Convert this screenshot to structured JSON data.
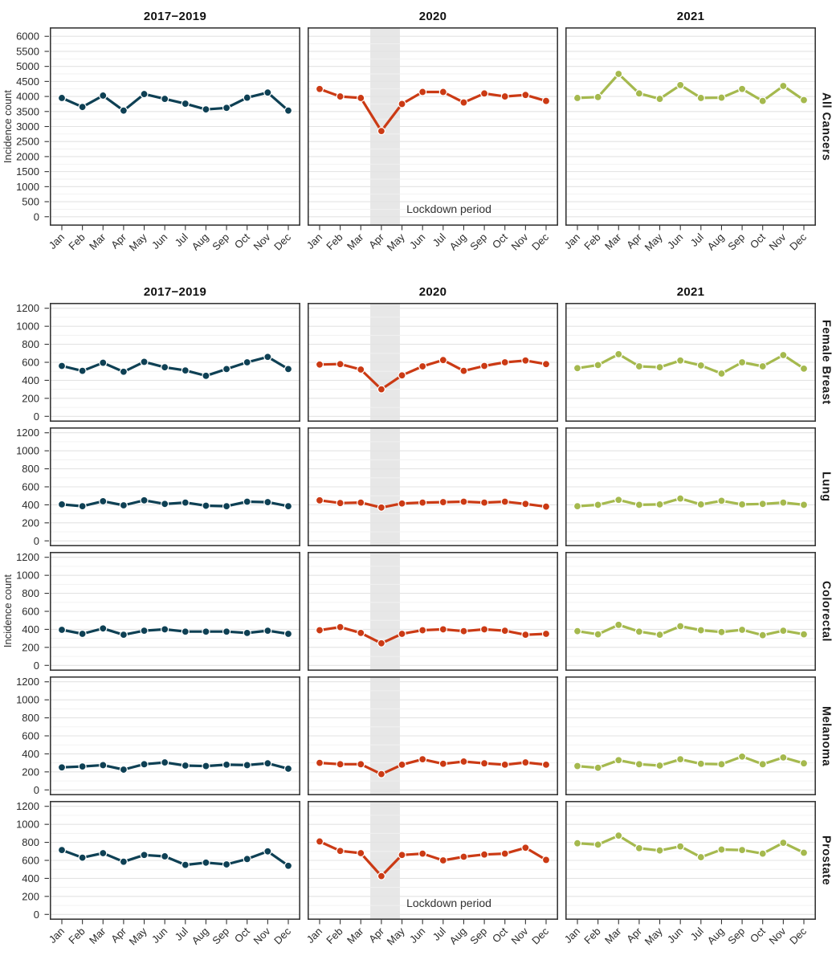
{
  "chart_data": {
    "type": "line",
    "description": "Monthly cancer incidence counts by period (2017-2019 average, 2020, 2021), faceted by cancer type",
    "col_titles": [
      "2017−2019",
      "2020",
      "2021"
    ],
    "ylabel": "Incidence count",
    "months": [
      "Jan",
      "Feb",
      "Mar",
      "Apr",
      "May",
      "Jun",
      "Jul",
      "Aug",
      "Sep",
      "Oct",
      "Nov",
      "Dec"
    ],
    "series_colors": [
      "#0E4054",
      "#CB3A14",
      "#A5B94E"
    ],
    "grid": true,
    "legend": "none",
    "lockdown": {
      "label": "Lockdown period",
      "column": "2020",
      "band_x_range": [
        2.46,
        3.9
      ],
      "band_color": "#DFDFDF",
      "text_rows": [
        "All Cancers",
        "Prostate"
      ]
    },
    "figures": [
      {
        "name": "all-cancers",
        "ymax": 6000,
        "ytick_step": 500,
        "yminor_step": 250,
        "ylim": [
          0,
          6300
        ],
        "show_col_titles": true,
        "show_x_labels": true,
        "rows": [
          {
            "facet": "All Cancers",
            "series": [
              {
                "name": "2017−2019",
                "values": [
                  3950,
                  3650,
                  4030,
                  3530,
                  4080,
                  3920,
                  3760,
                  3570,
                  3620,
                  3960,
                  4130,
                  3530
                ]
              },
              {
                "name": "2020",
                "values": [
                  4250,
                  4000,
                  3950,
                  2850,
                  3750,
                  4150,
                  4150,
                  3800,
                  4100,
                  4000,
                  4050,
                  3850
                ]
              },
              {
                "name": "2021",
                "values": [
                  3950,
                  3980,
                  4750,
                  4100,
                  3920,
                  4380,
                  3950,
                  3960,
                  4250,
                  3850,
                  4350,
                  3880
                ]
              }
            ]
          }
        ]
      },
      {
        "name": "cancer-types",
        "ymax": 1200,
        "ytick_step": 200,
        "yminor_step": 100,
        "ylim": [
          0,
          1260
        ],
        "show_col_titles": true,
        "show_x_labels": true,
        "rows": [
          {
            "facet": "Female Breast",
            "series": [
              {
                "name": "2017−2019",
                "values": [
                  560,
                  505,
                  595,
                  495,
                  605,
                  545,
                  510,
                  450,
                  525,
                  600,
                  660,
                  525
                ]
              },
              {
                "name": "2020",
                "values": [
                  575,
                  580,
                  520,
                  300,
                  455,
                  555,
                  625,
                  505,
                  560,
                  600,
                  620,
                  580
                ]
              },
              {
                "name": "2021",
                "values": [
                  535,
                  570,
                  690,
                  555,
                  545,
                  620,
                  565,
                  475,
                  600,
                  555,
                  680,
                  530
                ]
              }
            ]
          },
          {
            "facet": "Lung",
            "series": [
              {
                "name": "2017−2019",
                "values": [
                  405,
                  385,
                  440,
                  395,
                  450,
                  410,
                  425,
                  390,
                  385,
                  435,
                  430,
                  385
                ]
              },
              {
                "name": "2020",
                "values": [
                  450,
                  420,
                  425,
                  370,
                  415,
                  425,
                  430,
                  435,
                  425,
                  435,
                  410,
                  380
                ]
              },
              {
                "name": "2021",
                "values": [
                  385,
                  400,
                  455,
                  400,
                  405,
                  470,
                  405,
                  445,
                  405,
                  410,
                  425,
                  400
                ]
              }
            ]
          },
          {
            "facet": "Colorectal",
            "series": [
              {
                "name": "2017−2019",
                "values": [
                  395,
                  350,
                  410,
                  340,
                  385,
                  400,
                  375,
                  375,
                  375,
                  360,
                  385,
                  350
                ]
              },
              {
                "name": "2020",
                "values": [
                  390,
                  425,
                  360,
                  245,
                  350,
                  390,
                  400,
                  380,
                  400,
                  385,
                  340,
                  350
                ]
              },
              {
                "name": "2021",
                "values": [
                  380,
                  345,
                  450,
                  375,
                  340,
                  435,
                  390,
                  370,
                  395,
                  335,
                  385,
                  345
                ]
              }
            ]
          },
          {
            "facet": "Melanoma",
            "series": [
              {
                "name": "2017−2019",
                "values": [
                  250,
                  260,
                  275,
                  225,
                  285,
                  305,
                  270,
                  265,
                  280,
                  275,
                  295,
                  235
                ]
              },
              {
                "name": "2020",
                "values": [
                  300,
                  285,
                  285,
                  175,
                  280,
                  340,
                  290,
                  315,
                  295,
                  280,
                  305,
                  280
                ]
              },
              {
                "name": "2021",
                "values": [
                  265,
                  245,
                  330,
                  285,
                  270,
                  340,
                  290,
                  285,
                  370,
                  285,
                  360,
                  295
                ]
              }
            ]
          },
          {
            "facet": "Prostate",
            "series": [
              {
                "name": "2017−2019",
                "values": [
                  715,
                  630,
                  680,
                  585,
                  660,
                  645,
                  550,
                  575,
                  555,
                  615,
                  700,
                  540
                ]
              },
              {
                "name": "2020",
                "values": [
                  810,
                  705,
                  680,
                  425,
                  660,
                  675,
                  600,
                  640,
                  665,
                  675,
                  740,
                  605
                ]
              },
              {
                "name": "2021",
                "values": [
                  790,
                  775,
                  875,
                  735,
                  710,
                  755,
                  635,
                  720,
                  715,
                  675,
                  795,
                  685
                ]
              }
            ]
          }
        ]
      }
    ]
  },
  "style_tokens": {
    "grid_major": "#E3E3E3",
    "grid_minor": "#F1F1F1",
    "panel_border": "#383838",
    "tick_color": "#333333",
    "axis_text": "#2B2B2B",
    "annotation_text": "#333333",
    "marker_outline": "#FFFFFF"
  }
}
